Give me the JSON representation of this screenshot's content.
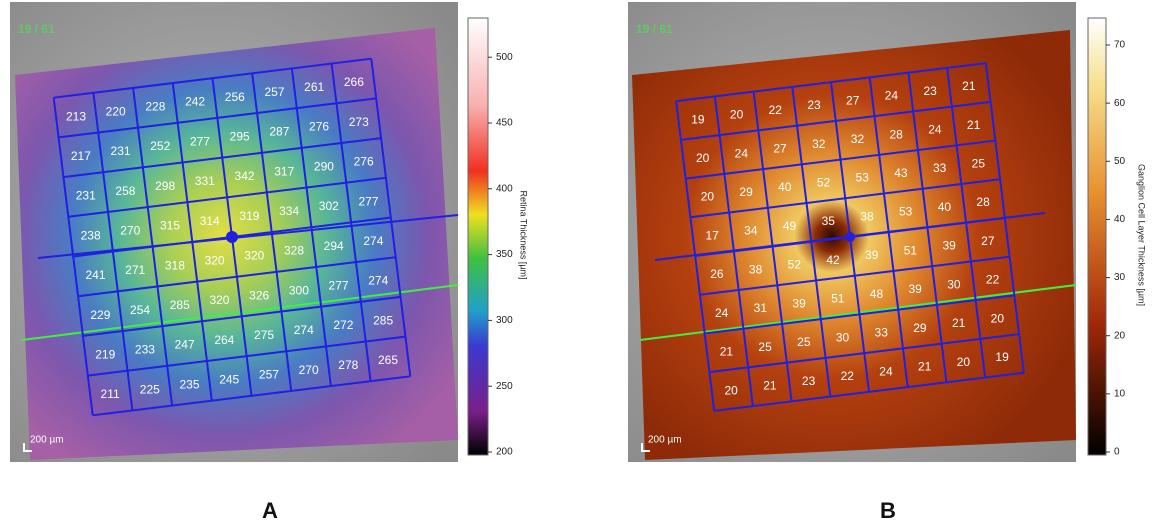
{
  "panels": [
    {
      "label": "A",
      "counter": "19 / 61",
      "scale": "200 µm",
      "colorbar_title": "Retina Thickness [µm]",
      "colorbar_ticks": [
        200,
        250,
        300,
        350,
        400,
        450,
        500
      ],
      "grid": [
        [
          213,
          220,
          228,
          242,
          256,
          257,
          261,
          266
        ],
        [
          217,
          231,
          252,
          277,
          295,
          287,
          276,
          273
        ],
        [
          231,
          258,
          298,
          331,
          342,
          317,
          290,
          276
        ],
        [
          238,
          270,
          315,
          314,
          319,
          334,
          302,
          277
        ],
        [
          241,
          271,
          318,
          320,
          320,
          328,
          294,
          274
        ],
        [
          229,
          254,
          285,
          320,
          326,
          300,
          277,
          274
        ],
        [
          219,
          233,
          247,
          264,
          275,
          274,
          272,
          285
        ],
        [
          211,
          225,
          235,
          245,
          257,
          270,
          278,
          265
        ]
      ]
    },
    {
      "label": "B",
      "counter": "19 / 61",
      "scale": "200 µm",
      "colorbar_title": "Ganglion Cell Layer Thickness [µm]",
      "colorbar_ticks": [
        0,
        10,
        20,
        30,
        40,
        50,
        60,
        70
      ],
      "grid": [
        [
          19,
          20,
          22,
          23,
          27,
          24,
          23,
          21
        ],
        [
          20,
          24,
          27,
          32,
          32,
          28,
          24,
          21
        ],
        [
          20,
          29,
          40,
          52,
          53,
          43,
          33,
          25
        ],
        [
          17,
          34,
          49,
          35,
          38,
          53,
          40,
          28
        ],
        [
          26,
          38,
          52,
          42,
          39,
          51,
          39,
          27
        ],
        [
          24,
          31,
          39,
          51,
          48,
          39,
          30,
          22
        ],
        [
          21,
          25,
          25,
          30,
          33,
          29,
          21,
          20
        ],
        [
          20,
          21,
          23,
          22,
          24,
          21,
          20,
          19
        ]
      ]
    }
  ]
}
